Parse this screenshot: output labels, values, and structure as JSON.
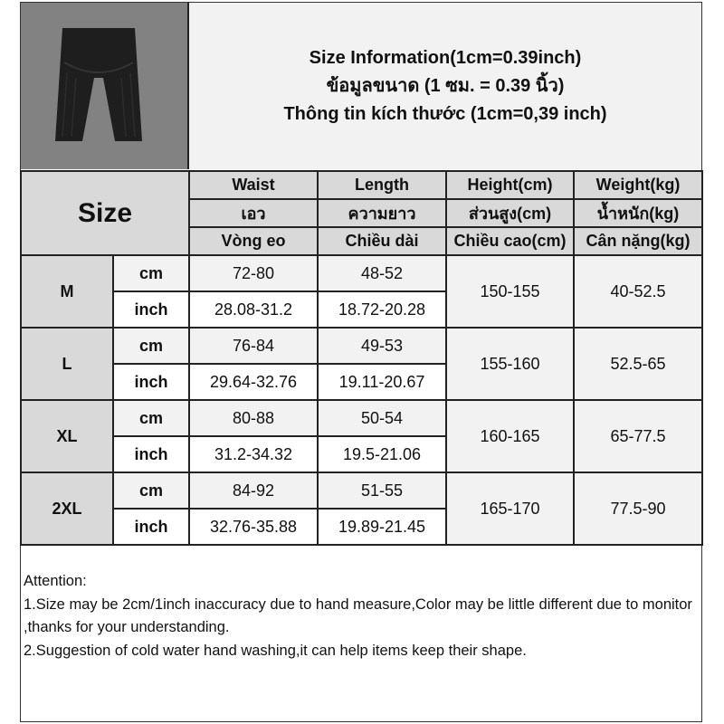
{
  "header": {
    "lines": [
      "Size Information(1cm=0.39inch)",
      "ข้อมูลขนาด (1 ซม. = 0.39 นิ้ว)",
      "Thông tin kích thước (1cm=0,39 inch)"
    ]
  },
  "product_image": {
    "description_icon": "black-maternity-shorts"
  },
  "table": {
    "size_label": "Size",
    "columns": [
      [
        "Waist",
        "เอว",
        "Vòng eo"
      ],
      [
        "Length",
        "ความยาว",
        "Chiều dài"
      ],
      [
        "Height(cm)",
        "ส่วนสูง(cm)",
        "Chiều cao(cm)"
      ],
      [
        "Weight(kg)",
        "น้ำหนัก(kg)",
        "Cân nặng(kg)"
      ]
    ],
    "unit_cm": "cm",
    "unit_inch": "inch",
    "rows": [
      {
        "size": "M",
        "waist_cm": "72-80",
        "length_cm": "48-52",
        "waist_inch": "28.08-31.2",
        "length_inch": "18.72-20.28",
        "height": "150-155",
        "weight": "40-52.5"
      },
      {
        "size": "L",
        "waist_cm": "76-84",
        "length_cm": "49-53",
        "waist_inch": "29.64-32.76",
        "length_inch": "19.11-20.67",
        "height": "155-160",
        "weight": "52.5-65"
      },
      {
        "size": "XL",
        "waist_cm": "80-88",
        "length_cm": "50-54",
        "waist_inch": "31.2-34.32",
        "length_inch": "19.5-21.06",
        "height": "160-165",
        "weight": "65-77.5"
      },
      {
        "size": "2XL",
        "waist_cm": "84-92",
        "length_cm": "51-55",
        "waist_inch": "32.76-35.88",
        "length_inch": "19.89-21.45",
        "height": "165-170",
        "weight": "77.5-90"
      }
    ]
  },
  "notes": {
    "heading": "Attention:",
    "items": [
      "1.Size may be 2cm/1inch inaccuracy due to hand measure,Color may be little different due to monitor ,thanks for your understanding.",
      "2.Suggestion of cold water hand washing,it can help items keep their shape."
    ]
  }
}
